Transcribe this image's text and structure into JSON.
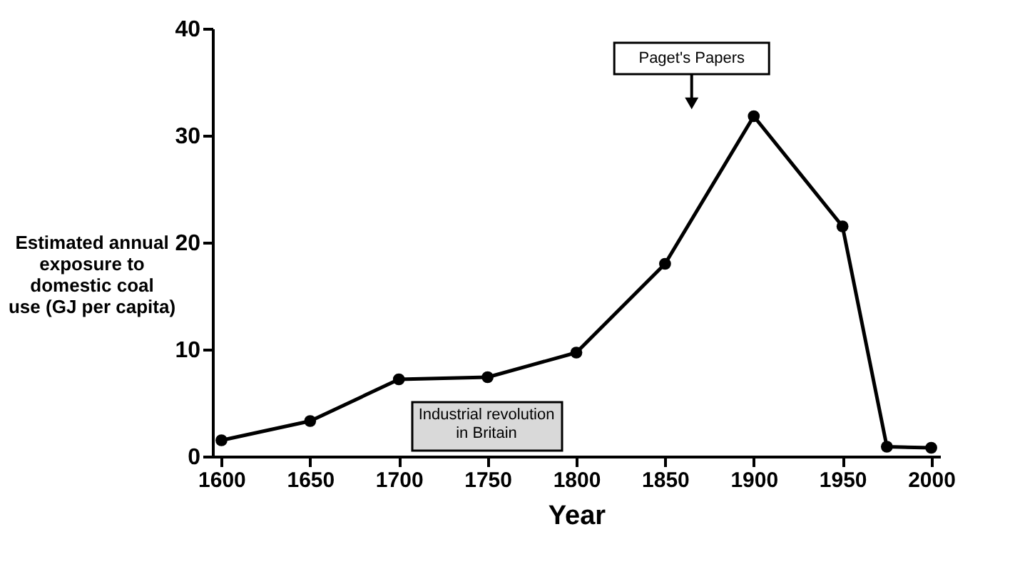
{
  "chart_data": {
    "type": "line",
    "xlabel": "Year",
    "ylabel": "Estimated annual\nexposure to\ndomestic coal\nuse (GJ per capita)",
    "x": [
      1600,
      1650,
      1700,
      1750,
      1800,
      1850,
      1900,
      1950,
      1975,
      2000
    ],
    "series": [
      {
        "color": "#000000",
        "values": [
          1.5,
          3.3,
          7.2,
          7.4,
          9.7,
          18.0,
          31.8,
          21.5,
          0.9,
          0.8
        ]
      }
    ],
    "xlim": [
      1595,
      2005
    ],
    "xticks": [
      1600,
      1650,
      1700,
      1750,
      1800,
      1850,
      1900,
      1950,
      2000
    ],
    "ylim": [
      0,
      40
    ],
    "yticks": [
      0,
      10,
      20,
      30,
      40
    ],
    "grid": false,
    "legend": false,
    "marker": "circle",
    "line_style": "solid",
    "annotations": [
      {
        "text": "Paget's  Papers",
        "x": 1865,
        "y": 33
      },
      "Industrial revolution\nin Britain"
    ]
  }
}
